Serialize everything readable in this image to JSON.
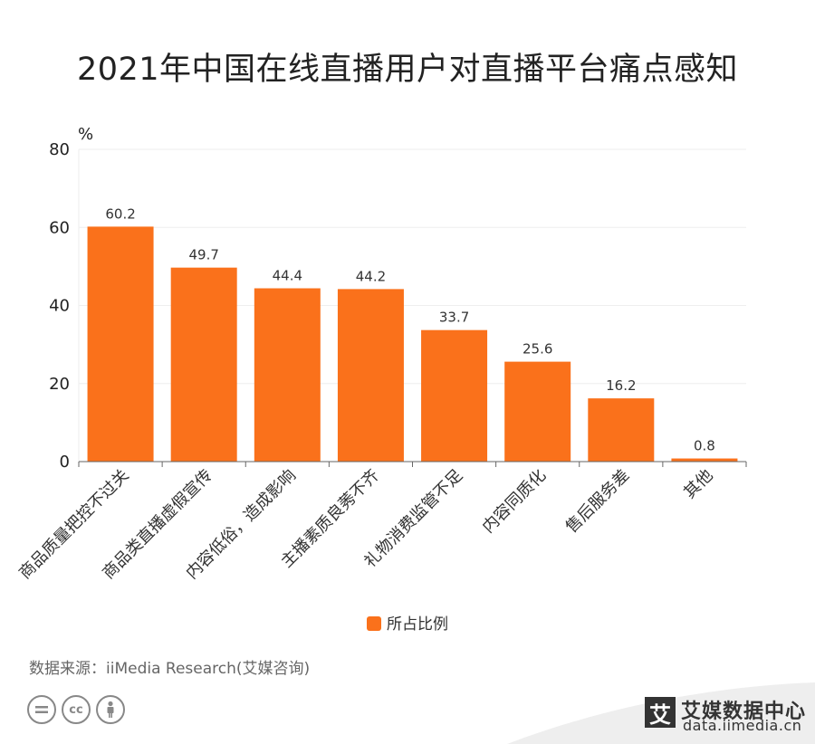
{
  "title": "2021年中国在线直播用户对直播平台痛点感知",
  "chart_data": {
    "type": "bar",
    "title": "2021年中国在线直播用户对直播平台痛点感知",
    "ylabel": "%",
    "xlabel": "",
    "ylim": [
      0,
      80
    ],
    "yticks": [
      0,
      20,
      40,
      60,
      80
    ],
    "grid": true,
    "legend_position": "bottom",
    "categories": [
      "商品质量把控不过关",
      "商品类直播虚假宣传",
      "内容低俗，造成影响",
      "主播素质良莠不齐",
      "礼物消费监管不足",
      "内容同质化",
      "售后服务差",
      "其他"
    ],
    "series": [
      {
        "name": "所占比例",
        "values": [
          60.2,
          49.7,
          44.4,
          44.2,
          33.7,
          25.6,
          16.2,
          0.8
        ],
        "color": "#fa711b"
      }
    ]
  },
  "source": "数据来源：iiMedia Research(艾媒咨询)",
  "license_icons": [
    "equals-icon",
    "cc-icon",
    "person-icon"
  ],
  "license_labels": {
    "cc": "cc"
  },
  "logo": {
    "mark": "艾",
    "name": "艾媒数据中心",
    "url": "data.iimedia.cn"
  },
  "colors": {
    "bar": "#fa711b",
    "grid": "#eeeeee",
    "axis": "#666666",
    "footer_band": "#eeeeee"
  }
}
